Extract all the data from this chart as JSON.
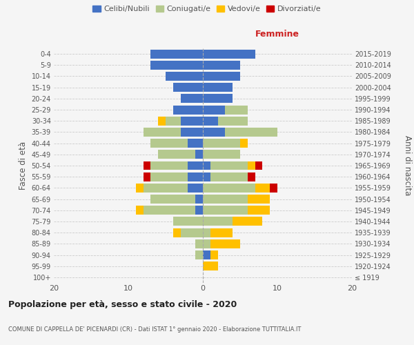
{
  "age_groups": [
    "100+",
    "95-99",
    "90-94",
    "85-89",
    "80-84",
    "75-79",
    "70-74",
    "65-69",
    "60-64",
    "55-59",
    "50-54",
    "45-49",
    "40-44",
    "35-39",
    "30-34",
    "25-29",
    "20-24",
    "15-19",
    "10-14",
    "5-9",
    "0-4"
  ],
  "birth_years": [
    "≤ 1919",
    "1920-1924",
    "1925-1929",
    "1930-1934",
    "1935-1939",
    "1940-1944",
    "1945-1949",
    "1950-1954",
    "1955-1959",
    "1960-1964",
    "1965-1969",
    "1970-1974",
    "1975-1979",
    "1980-1984",
    "1985-1989",
    "1990-1994",
    "1995-1999",
    "2000-2004",
    "2005-2009",
    "2010-2014",
    "2015-2019"
  ],
  "males": {
    "celibi": [
      0,
      0,
      0,
      0,
      0,
      0,
      1,
      1,
      2,
      2,
      2,
      1,
      2,
      3,
      3,
      4,
      3,
      4,
      5,
      7,
      7
    ],
    "coniugati": [
      0,
      0,
      1,
      1,
      3,
      4,
      7,
      6,
      6,
      5,
      5,
      5,
      5,
      5,
      2,
      0,
      0,
      0,
      0,
      0,
      0
    ],
    "vedovi": [
      0,
      0,
      0,
      0,
      1,
      0,
      1,
      0,
      1,
      0,
      0,
      0,
      0,
      0,
      1,
      0,
      0,
      0,
      0,
      0,
      0
    ],
    "divorziati": [
      0,
      0,
      0,
      0,
      0,
      0,
      0,
      0,
      0,
      1,
      1,
      0,
      0,
      0,
      0,
      0,
      0,
      0,
      0,
      0,
      0
    ]
  },
  "females": {
    "nubili": [
      0,
      0,
      1,
      0,
      0,
      0,
      0,
      0,
      0,
      1,
      1,
      0,
      0,
      3,
      2,
      3,
      4,
      4,
      5,
      5,
      7
    ],
    "coniugate": [
      0,
      0,
      0,
      1,
      1,
      4,
      6,
      6,
      7,
      5,
      5,
      5,
      5,
      7,
      4,
      3,
      0,
      0,
      0,
      0,
      0
    ],
    "vedove": [
      0,
      2,
      1,
      4,
      3,
      4,
      3,
      3,
      2,
      0,
      1,
      0,
      1,
      0,
      0,
      0,
      0,
      0,
      0,
      0,
      0
    ],
    "divorziate": [
      0,
      0,
      0,
      0,
      0,
      0,
      0,
      0,
      1,
      1,
      1,
      0,
      0,
      0,
      0,
      0,
      0,
      0,
      0,
      0,
      0
    ]
  },
  "color_celibi": "#4472c4",
  "color_coniugati": "#b5c98e",
  "color_vedovi": "#ffc000",
  "color_divorziati": "#cc0000",
  "xlim": 20,
  "title": "Popolazione per età, sesso e stato civile - 2020",
  "subtitle": "COMUNE DI CAPPELLA DE' PICENARDI (CR) - Dati ISTAT 1° gennaio 2020 - Elaborazione TUTTITALIA.IT",
  "ylabel_left": "Fasce di età",
  "ylabel_right": "Anni di nascita",
  "label_femmine": "Femmine",
  "legend_labels": [
    "Celibi/Nubili",
    "Coniugati/e",
    "Vedovi/e",
    "Divorziati/e"
  ],
  "bg_color": "#f5f5f5",
  "grid_color": "#cccccc"
}
